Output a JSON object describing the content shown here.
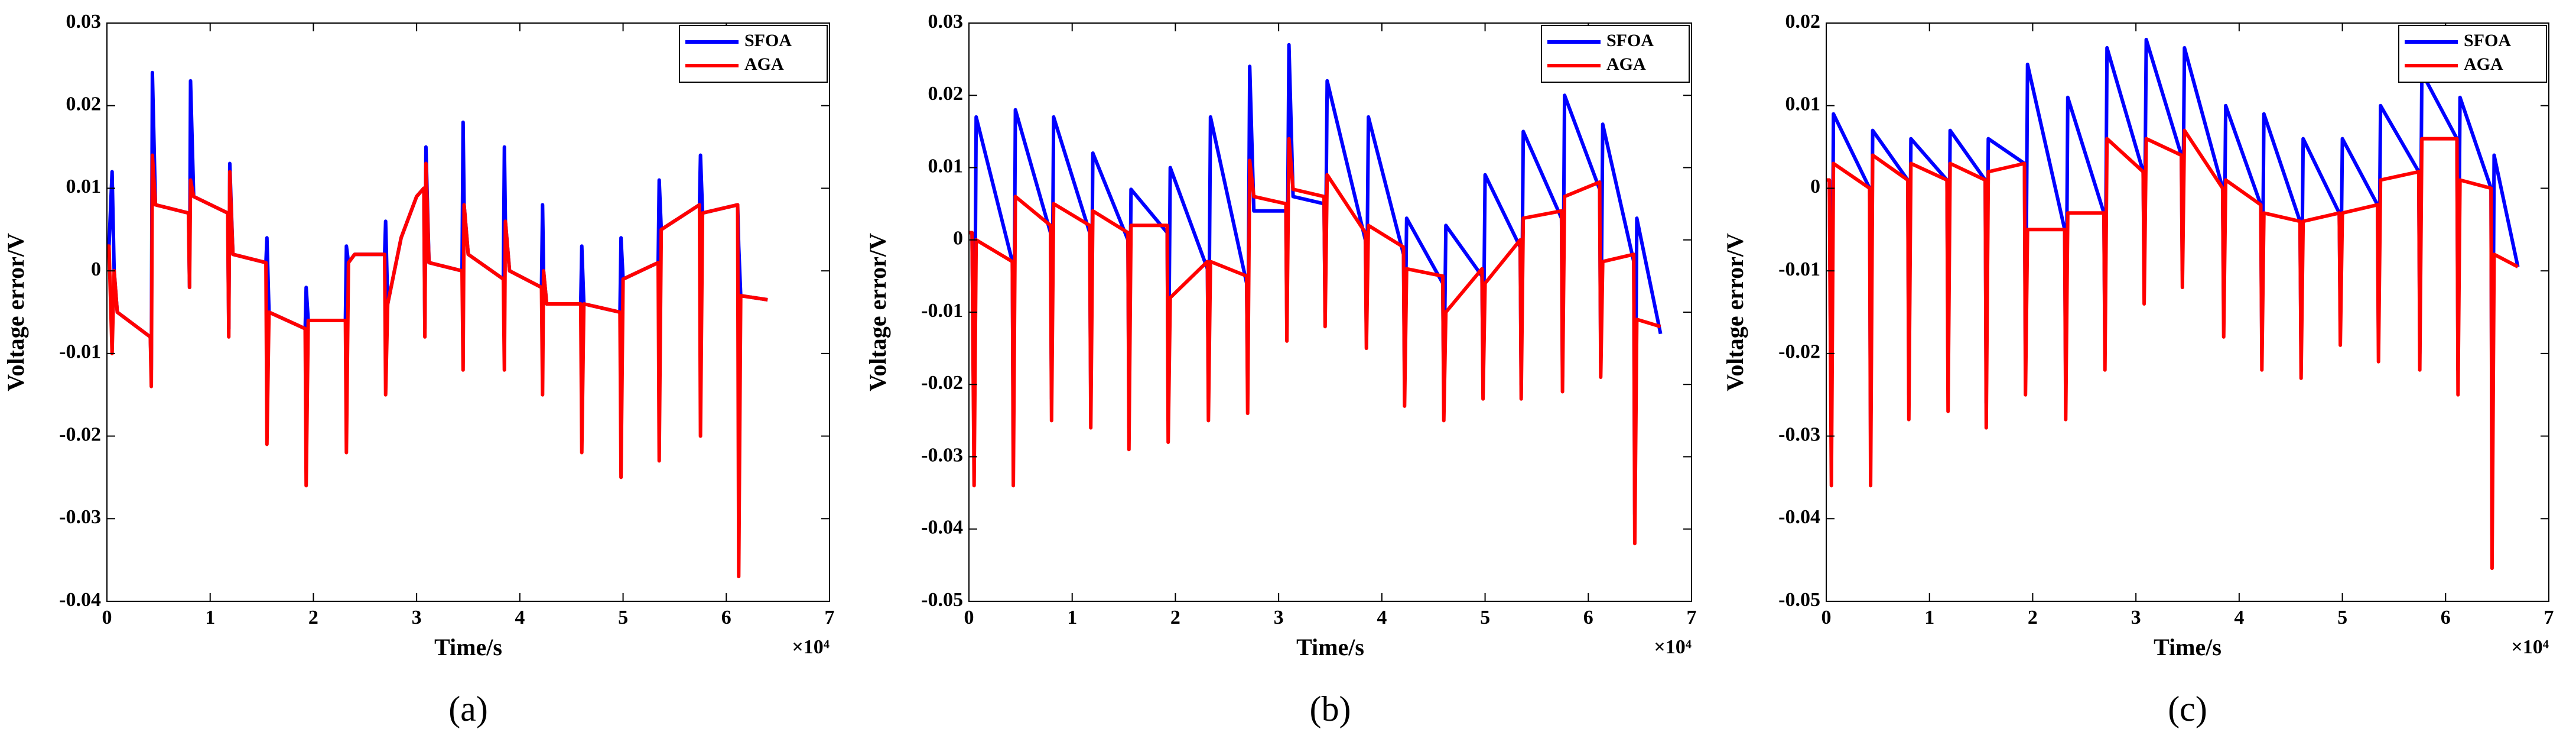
{
  "chart_data": [
    {
      "type": "line",
      "caption": "(a)",
      "x_label": "Time/s",
      "y_label": "Voltage error/V",
      "x_multiplier_label": "×10⁴",
      "xlim": [
        0,
        7
      ],
      "xticks": [
        0,
        1,
        2,
        3,
        4,
        5,
        6,
        7
      ],
      "ylim": [
        -0.04,
        0.03
      ],
      "yticks": [
        -0.04,
        -0.03,
        -0.02,
        -0.01,
        0,
        0.01,
        0.02,
        0.03
      ],
      "legend": "northeast",
      "x": [
        0,
        0.02,
        0.05,
        0.07,
        0.1,
        0.42,
        0.43,
        0.44,
        0.47,
        0.79,
        0.8,
        0.81,
        0.84,
        1.17,
        1.18,
        1.19,
        1.22,
        1.54,
        1.55,
        1.57,
        1.92,
        1.93,
        1.95,
        2.31,
        2.32,
        2.34,
        2.4,
        2.69,
        2.7,
        2.72,
        2.85,
        3.0,
        3.07,
        3.08,
        3.09,
        3.12,
        3.44,
        3.45,
        3.46,
        3.5,
        3.84,
        3.85,
        3.86,
        3.9,
        4.21,
        4.22,
        4.23,
        4.26,
        4.59,
        4.6,
        4.62,
        4.97,
        4.98,
        5.0,
        5.34,
        5.35,
        5.37,
        5.74,
        5.75,
        5.77,
        6.11,
        6.12,
        6.14,
        6.4
      ],
      "series": [
        {
          "name": "SFOA",
          "color": "#0000ff",
          "values": [
            0.003,
            0.003,
            0.012,
            0.0,
            -0.005,
            -0.008,
            -0.012,
            0.024,
            0.008,
            0.007,
            -0.002,
            0.023,
            0.009,
            0.007,
            -0.007,
            0.013,
            0.002,
            0.001,
            0.004,
            -0.005,
            -0.007,
            -0.002,
            -0.006,
            -0.006,
            0.003,
            0.001,
            0.002,
            0.002,
            0.006,
            -0.004,
            0.004,
            0.009,
            0.01,
            -0.007,
            0.015,
            0.001,
            0.0,
            0.018,
            0.008,
            0.002,
            -0.001,
            0.015,
            0.006,
            0.0,
            -0.002,
            0.008,
            0.0,
            -0.004,
            -0.004,
            0.003,
            -0.004,
            -0.005,
            0.004,
            -0.001,
            0.001,
            0.011,
            0.005,
            0.008,
            0.014,
            0.007,
            0.008,
            0.003,
            -0.003,
            -0.0035
          ]
        },
        {
          "name": "AGA",
          "color": "#ff0000",
          "values": [
            0.003,
            0.003,
            -0.01,
            0.0,
            -0.005,
            -0.008,
            -0.014,
            0.014,
            0.008,
            0.007,
            -0.002,
            0.011,
            0.009,
            0.007,
            -0.008,
            0.012,
            0.002,
            0.001,
            -0.021,
            -0.005,
            -0.007,
            -0.026,
            -0.006,
            -0.006,
            -0.022,
            0.001,
            0.002,
            0.002,
            -0.015,
            -0.004,
            0.004,
            0.009,
            0.01,
            -0.008,
            0.013,
            0.001,
            0.0,
            -0.012,
            0.008,
            0.002,
            -0.001,
            -0.012,
            0.006,
            0.0,
            -0.002,
            -0.015,
            0.0,
            -0.004,
            -0.004,
            -0.022,
            -0.004,
            -0.005,
            -0.025,
            -0.001,
            0.001,
            -0.023,
            0.005,
            0.008,
            -0.02,
            0.007,
            0.008,
            -0.037,
            -0.003,
            -0.0035
          ]
        }
      ]
    },
    {
      "type": "line",
      "caption": "(b)",
      "x_label": "Time/s",
      "y_label": "Voltage error/V",
      "x_multiplier_label": "×10⁴",
      "xlim": [
        0,
        7
      ],
      "xticks": [
        0,
        1,
        2,
        3,
        4,
        5,
        6,
        7
      ],
      "ylim": [
        -0.05,
        0.03
      ],
      "yticks": [
        -0.05,
        -0.04,
        -0.03,
        -0.02,
        -0.01,
        0,
        0.01,
        0.02,
        0.03
      ],
      "legend": "northeast",
      "x": [
        0,
        0.03,
        0.05,
        0.07,
        0.42,
        0.43,
        0.45,
        0.79,
        0.8,
        0.82,
        1.17,
        1.18,
        1.2,
        1.54,
        1.55,
        1.57,
        1.92,
        1.93,
        1.95,
        2.31,
        2.32,
        2.34,
        2.69,
        2.7,
        2.72,
        2.76,
        3.07,
        3.08,
        3.1,
        3.14,
        3.44,
        3.45,
        3.47,
        3.84,
        3.85,
        3.87,
        4.21,
        4.22,
        4.24,
        4.59,
        4.6,
        4.62,
        4.97,
        4.98,
        5.0,
        5.34,
        5.35,
        5.37,
        5.74,
        5.75,
        5.77,
        6.11,
        6.12,
        6.14,
        6.44,
        6.45,
        6.47,
        6.7
      ],
      "series": [
        {
          "name": "SFOA",
          "color": "#0000ff",
          "values": [
            0.001,
            0.001,
            -0.03,
            0.017,
            -0.003,
            -0.03,
            0.018,
            0.001,
            -0.022,
            0.017,
            0.001,
            -0.023,
            0.012,
            0.0,
            -0.026,
            0.007,
            0.001,
            -0.025,
            0.01,
            -0.004,
            -0.022,
            0.017,
            -0.006,
            -0.021,
            0.024,
            0.004,
            0.004,
            -0.012,
            0.027,
            0.006,
            0.005,
            -0.01,
            0.022,
            0.0,
            -0.013,
            0.017,
            -0.002,
            -0.02,
            0.003,
            -0.006,
            -0.022,
            0.002,
            -0.005,
            -0.02,
            0.009,
            -0.001,
            -0.02,
            0.015,
            0.003,
            -0.019,
            0.02,
            0.007,
            -0.017,
            0.016,
            -0.003,
            -0.038,
            0.003,
            -0.013
          ]
        },
        {
          "name": "AGA",
          "color": "#ff0000",
          "values": [
            0.001,
            0.001,
            -0.034,
            0.0,
            -0.003,
            -0.034,
            0.006,
            0.002,
            -0.025,
            0.005,
            0.002,
            -0.026,
            0.004,
            0.001,
            -0.029,
            0.002,
            0.002,
            -0.028,
            -0.008,
            -0.003,
            -0.025,
            -0.003,
            -0.005,
            -0.024,
            0.011,
            0.006,
            0.005,
            -0.014,
            0.014,
            0.007,
            0.006,
            -0.012,
            0.009,
            0.001,
            -0.015,
            0.002,
            -0.001,
            -0.023,
            -0.004,
            -0.005,
            -0.025,
            -0.01,
            -0.004,
            -0.022,
            -0.006,
            0.0,
            -0.022,
            0.003,
            0.004,
            -0.021,
            0.006,
            0.008,
            -0.019,
            -0.003,
            -0.002,
            -0.042,
            -0.011,
            -0.012
          ]
        }
      ]
    },
    {
      "type": "line",
      "caption": "(c)",
      "x_label": "Time/s",
      "y_label": "Voltage error/V",
      "x_multiplier_label": "×10⁴",
      "xlim": [
        0,
        7
      ],
      "xticks": [
        0,
        1,
        2,
        3,
        4,
        5,
        6,
        7
      ],
      "ylim": [
        -0.05,
        0.02
      ],
      "yticks": [
        -0.05,
        -0.04,
        -0.03,
        -0.02,
        -0.01,
        0,
        0.01,
        0.02
      ],
      "legend": "northeast",
      "x": [
        0,
        0.03,
        0.05,
        0.07,
        0.42,
        0.43,
        0.45,
        0.79,
        0.8,
        0.82,
        1.17,
        1.18,
        1.2,
        1.54,
        1.55,
        1.57,
        1.92,
        1.93,
        1.95,
        2.31,
        2.32,
        2.34,
        2.69,
        2.7,
        2.72,
        3.07,
        3.08,
        3.1,
        3.44,
        3.45,
        3.47,
        3.84,
        3.85,
        3.87,
        4.21,
        4.22,
        4.24,
        4.59,
        4.6,
        4.62,
        4.97,
        4.98,
        5.0,
        5.34,
        5.35,
        5.37,
        5.74,
        5.75,
        5.77,
        6.11,
        6.12,
        6.14,
        6.44,
        6.45,
        6.47,
        6.7
      ],
      "series": [
        {
          "name": "SFOA",
          "color": "#0000ff",
          "values": [
            0.001,
            0.001,
            -0.032,
            0.009,
            0.0,
            -0.032,
            0.007,
            0.001,
            -0.025,
            0.006,
            0.001,
            -0.024,
            0.007,
            0.001,
            -0.026,
            0.006,
            0.003,
            -0.022,
            0.015,
            -0.005,
            -0.025,
            0.011,
            -0.003,
            -0.02,
            0.017,
            0.002,
            -0.012,
            0.018,
            0.004,
            -0.01,
            0.017,
            0.0,
            -0.016,
            0.01,
            -0.002,
            -0.02,
            0.009,
            -0.004,
            -0.021,
            0.006,
            -0.003,
            -0.017,
            0.006,
            -0.002,
            -0.019,
            0.01,
            0.002,
            -0.02,
            0.014,
            0.006,
            -0.022,
            0.011,
            0.0,
            -0.042,
            0.004,
            -0.0095
          ]
        },
        {
          "name": "AGA",
          "color": "#ff0000",
          "values": [
            0.001,
            0.001,
            -0.036,
            0.003,
            0.0,
            -0.036,
            0.004,
            0.001,
            -0.028,
            0.003,
            0.001,
            -0.027,
            0.003,
            0.001,
            -0.029,
            0.002,
            0.003,
            -0.025,
            -0.005,
            -0.005,
            -0.028,
            -0.003,
            -0.003,
            -0.022,
            0.006,
            0.002,
            -0.014,
            0.006,
            0.004,
            -0.012,
            0.007,
            0.0,
            -0.018,
            0.001,
            -0.002,
            -0.022,
            -0.003,
            -0.004,
            -0.023,
            -0.004,
            -0.003,
            -0.019,
            -0.003,
            -0.002,
            -0.021,
            0.001,
            0.002,
            -0.022,
            0.006,
            0.006,
            -0.025,
            0.001,
            0.0,
            -0.046,
            -0.008,
            -0.0095
          ]
        }
      ]
    }
  ]
}
